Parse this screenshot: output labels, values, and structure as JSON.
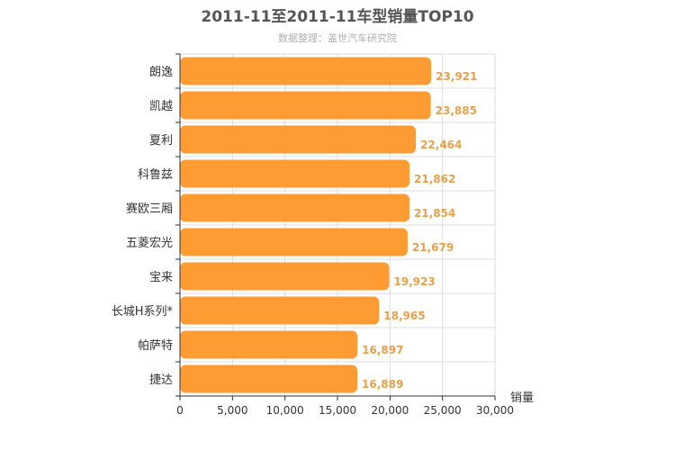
{
  "chart_data": {
    "type": "bar",
    "orientation": "horizontal",
    "title": "2011-11至2011-11车型销量TOP10",
    "subtitle": "数据整理：盖世汽车研究院",
    "xlabel": "销量",
    "ylabel": "",
    "xlim": [
      0,
      30000
    ],
    "x_ticks": [
      0,
      5000,
      10000,
      15000,
      20000,
      25000,
      30000
    ],
    "x_tick_labels": [
      "0",
      "5,000",
      "10,000",
      "15,000",
      "20,000",
      "25,000",
      "30,000"
    ],
    "grid": true,
    "bar_color": "#ff9b33",
    "value_label_color": "#e8a04a",
    "categories": [
      "朗逸",
      "凯越",
      "夏利",
      "科鲁兹",
      "赛欧三厢",
      "五菱宏光",
      "宝来",
      "长城H系列*",
      "帕萨特",
      "捷达"
    ],
    "values": [
      23921,
      23885,
      22464,
      21862,
      21854,
      21679,
      19923,
      18965,
      16897,
      16889
    ],
    "value_labels": [
      "23,921",
      "23,885",
      "22,464",
      "21,862",
      "21,854",
      "21,679",
      "19,923",
      "18,965",
      "16,897",
      "16,889"
    ]
  }
}
